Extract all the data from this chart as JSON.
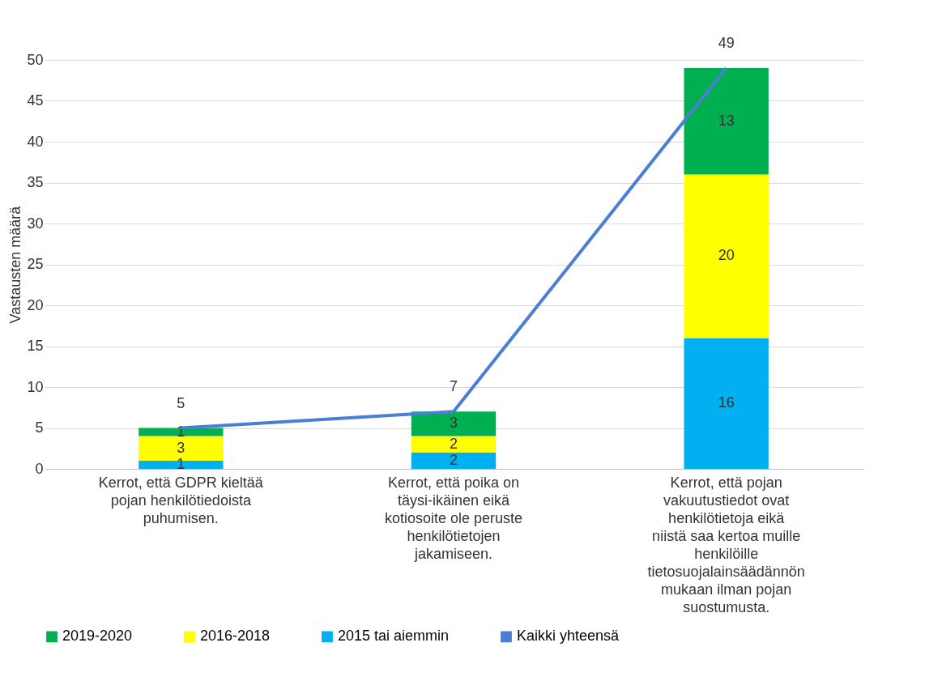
{
  "chart_data": {
    "type": "bar",
    "stacked": true,
    "ylabel": "Vastausten määrä",
    "categories": [
      "Kerrot, että GDPR kieltää pojan henkilötiedoista puhumisen.",
      "Kerrot, että poika on täysi-ikäinen eikä kotiosoite ole peruste henkilötietojen jakamiseen.",
      "Kerrot, että pojan vakuutustiedot ovat henkilötietoja eikä niistä saa kertoa muille henkilöille tietosuojalainsäädännön mukaan ilman pojan suostumusta."
    ],
    "series": [
      {
        "name": "2015 tai aiemmin",
        "color": "#00b0f0",
        "values": [
          1,
          2,
          16
        ]
      },
      {
        "name": "2016-2018",
        "color": "#ffff00",
        "values": [
          3,
          2,
          20
        ]
      },
      {
        "name": "2019-2020",
        "color": "#00b050",
        "values": [
          1,
          3,
          13
        ]
      },
      {
        "name": "Kaikki yhteensä",
        "type": "line",
        "color": "#4a7fd4",
        "values": [
          5,
          7,
          49
        ]
      }
    ],
    "ylim": [
      0,
      50
    ],
    "yticks": [
      0,
      5,
      10,
      15,
      20,
      25,
      30,
      35,
      40,
      45,
      50
    ],
    "grid": "y",
    "legend": "bottom",
    "data_labels": true
  }
}
